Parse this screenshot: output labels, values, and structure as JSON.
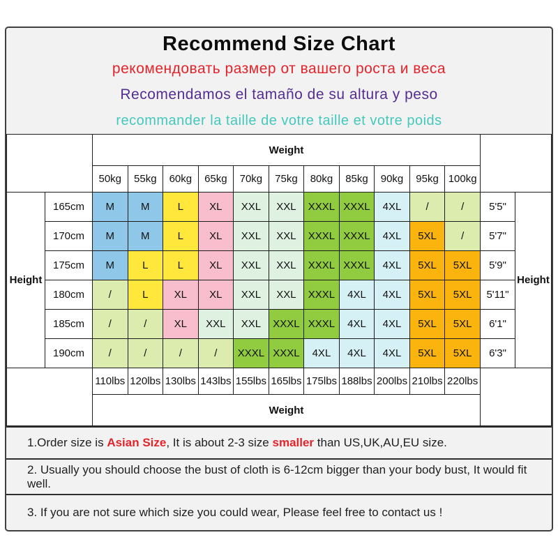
{
  "title": "Recommend Size Chart",
  "subtitles": [
    {
      "lang": "ru",
      "text": "рекомендовать размер от вашего роста и веса",
      "color": "#e3242b"
    },
    {
      "lang": "es",
      "text": "Recomendamos el tamaño de su altura y peso",
      "color": "#552d91"
    },
    {
      "lang": "fr",
      "text": "recommander la taille de votre taille et votre poids",
      "color": "#45c8bc"
    }
  ],
  "table": {
    "weight_header": "Weight",
    "weight_footer": "Weight",
    "height_label_left": "Height",
    "height_label_right": "Height",
    "kg_labels": [
      "50kg",
      "55kg",
      "60kg",
      "65kg",
      "70kg",
      "75kg",
      "80kg",
      "85kg",
      "90kg",
      "95kg",
      "100kg"
    ],
    "lbs_labels": [
      "110lbs",
      "120lbs",
      "130lbs",
      "143lbs",
      "155lbs",
      "165lbs",
      "175lbs",
      "188lbs",
      "200lbs",
      "210lbs",
      "220lbs"
    ],
    "rows": [
      {
        "cm": "165cm",
        "ft": "5'5\"",
        "sizes": [
          "M",
          "M",
          "L",
          "XL",
          "XXL",
          "XXL",
          "XXXL",
          "XXXL",
          "4XL",
          "/",
          "/"
        ]
      },
      {
        "cm": "170cm",
        "ft": "5'7\"",
        "sizes": [
          "M",
          "M",
          "L",
          "XL",
          "XXL",
          "XXL",
          "XXXL",
          "XXXL",
          "4XL",
          "5XL",
          "/"
        ]
      },
      {
        "cm": "175cm",
        "ft": "5'9\"",
        "sizes": [
          "M",
          "L",
          "L",
          "XL",
          "XXL",
          "XXL",
          "XXXL",
          "XXXL",
          "4XL",
          "5XL",
          "5XL"
        ]
      },
      {
        "cm": "180cm",
        "ft": "5'11\"",
        "sizes": [
          "/",
          "L",
          "XL",
          "XL",
          "XXL",
          "XXL",
          "XXXL",
          "4XL",
          "4XL",
          "5XL",
          "5XL"
        ]
      },
      {
        "cm": "185cm",
        "ft": "6'1\"",
        "sizes": [
          "/",
          "/",
          "XL",
          "XXL",
          "XXL",
          "XXXL",
          "XXXL",
          "4XL",
          "4XL",
          "5XL",
          "5XL"
        ]
      },
      {
        "cm": "190cm",
        "ft": "6'3\"",
        "sizes": [
          "/",
          "/",
          "/",
          "/",
          "XXXL",
          "XXXL",
          "4XL",
          "4XL",
          "4XL",
          "5XL",
          "5XL"
        ]
      }
    ]
  },
  "cell_colors": {
    "M": "#8fc7e8",
    "L": "#ffe73b",
    "XL": "#f8becd",
    "XXL": "#dff2e2",
    "XXXL": "#90cb40",
    "4XL": "#d6f1f5",
    "5XL": "#fbb40e",
    "/": "#dcebae"
  },
  "accent_red": "#e3242b",
  "notes": [
    {
      "segments": [
        {
          "text": "1.Order size is "
        },
        {
          "text": "Asian Size",
          "highlight": true
        },
        {
          "text": ", It is about 2-3 size "
        },
        {
          "text": "smaller",
          "highlight": true
        },
        {
          "text": " than US,UK,AU,EU size."
        }
      ]
    },
    {
      "segments": [
        {
          "text": "2. Usually you should choose the bust of cloth is 6-12cm bigger than your body bust, It would fit well."
        }
      ]
    },
    {
      "segments": [
        {
          "text": "3. If you are not sure which size you could wear, Please feel free to contact us !"
        }
      ]
    }
  ]
}
